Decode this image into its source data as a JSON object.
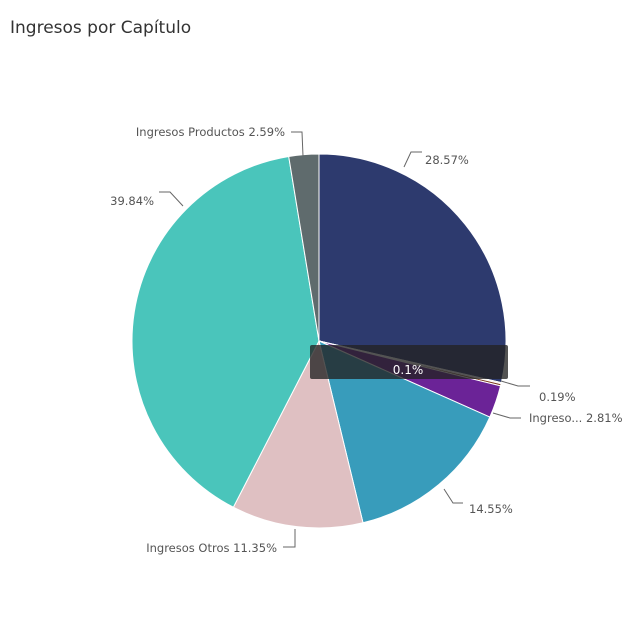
{
  "title": "Ingresos por Capítulo",
  "tooltip": {
    "label": "0.1%"
  },
  "chart_data": {
    "type": "pie",
    "title": "Ingresos por Capítulo",
    "slices": [
      {
        "label": "",
        "display": "28.57%",
        "value": 28.57,
        "color": "#2d3a6e"
      },
      {
        "label": "",
        "display": "0.1%",
        "value": 0.1,
        "color": "#c9a227"
      },
      {
        "label": "",
        "display": "0.19%",
        "value": 0.19,
        "color": "#7a3b1c"
      },
      {
        "label": "Ingreso...",
        "display": "Ingreso... 2.81%",
        "value": 2.81,
        "color": "#6b2397"
      },
      {
        "label": "",
        "display": "14.55%",
        "value": 14.55,
        "color": "#389cbb"
      },
      {
        "label": "Ingresos Otros",
        "display": "Ingresos Otros 11.35%",
        "value": 11.35,
        "color": "#dfc0c2"
      },
      {
        "label": "",
        "display": "39.84%",
        "value": 39.84,
        "color": "#4ac5bb"
      },
      {
        "label": "Ingresos Productos",
        "display": "Ingresos Productos 2.59%",
        "value": 2.59,
        "color": "#5f6b6d"
      }
    ]
  }
}
